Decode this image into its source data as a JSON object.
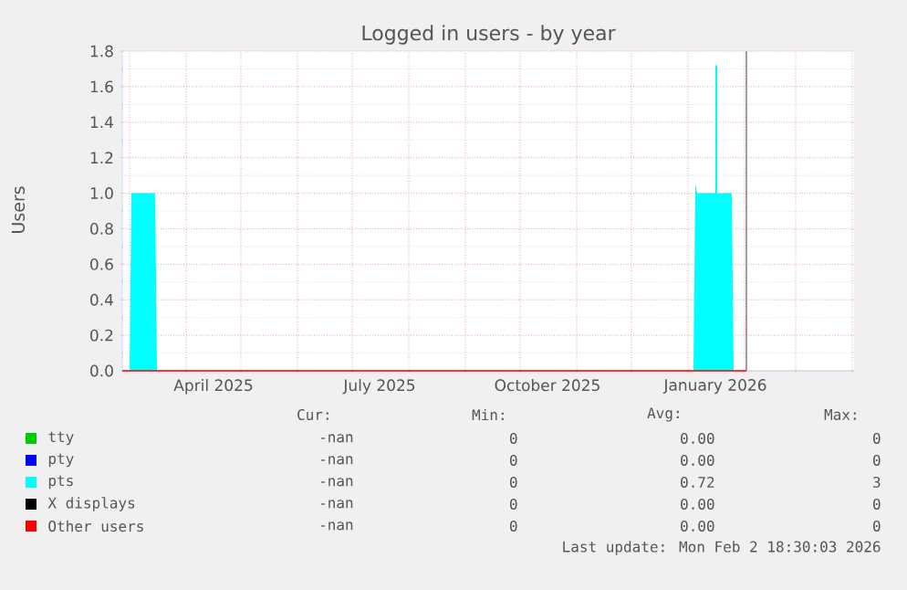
{
  "chart_data": {
    "type": "area",
    "title": "Logged in users - by year",
    "ylabel": "Users",
    "xlim": [
      "2025-02-25",
      "2026-04-02"
    ],
    "xticks": [
      {
        "value": "2025-03-01",
        "label": null
      },
      {
        "value": "2025-04-01",
        "label": null
      },
      {
        "value": "2025-05-01",
        "label": null
      },
      {
        "value": "2025-06-01",
        "label": null
      },
      {
        "value": "2025-07-01",
        "label": null
      },
      {
        "value": "2025-08-01",
        "label": null
      },
      {
        "value": "2025-09-01",
        "label": null
      },
      {
        "value": "2025-10-01",
        "label": null
      },
      {
        "value": "2025-11-01",
        "label": null
      },
      {
        "value": "2025-12-01",
        "label": null
      },
      {
        "value": "2026-01-01",
        "label": null
      },
      {
        "value": "2026-02-01",
        "label": null
      },
      {
        "value": "2026-03-01",
        "label": null
      },
      {
        "value": "2026-04-01",
        "label": null
      },
      {
        "value": "2025-04-16",
        "label": "April 2025"
      },
      {
        "value": "2025-07-16",
        "label": "July 2025"
      },
      {
        "value": "2025-10-16",
        "label": "October 2025"
      },
      {
        "value": "2026-01-16",
        "label": "January 2026"
      }
    ],
    "ylim": [
      0,
      1.8
    ],
    "yticks": [
      {
        "value": 0,
        "label": "0.0"
      },
      0.2,
      0.4,
      0.6,
      0.8,
      {
        "value": 1,
        "label": "1.0"
      },
      1.2,
      1.4,
      1.6,
      1.8
    ],
    "grid": true,
    "legend": "bottom",
    "series": [
      {
        "name": "tty",
        "color": "#00cc00",
        "type": "line",
        "values": [
          null
        ]
      },
      {
        "name": "pty",
        "color": "#0000ff",
        "type": "line",
        "values": [
          null
        ]
      },
      {
        "name": "pts",
        "color": "#00ffff",
        "x": [
          "2025-02-25",
          "2025-03-01",
          "2025-03-02",
          "2025-03-15",
          "2025-03-16",
          "2026-01-04",
          "2026-01-05",
          "2026-01-06",
          "2026-01-16",
          "2026-01-16",
          "2026-01-17",
          "2026-01-17",
          "2026-01-25",
          "2026-01-26",
          "2026-02-02"
        ],
        "values": [
          0,
          0,
          1,
          1,
          0,
          0,
          1.05,
          1,
          1,
          1.72,
          1.72,
          1,
          1,
          0,
          0
        ]
      },
      {
        "name": "X displays",
        "color": "#000000",
        "type": "line",
        "values": [
          null
        ]
      },
      {
        "name": "Other users",
        "color": "#ff0000",
        "type": "line",
        "x": [
          "2025-02-25",
          "2026-02-02"
        ],
        "values": [
          0,
          0
        ]
      }
    ],
    "ref_lines": [
      {
        "axis": "x",
        "value": "2026-02-02",
        "color": "#777777"
      }
    ],
    "annotations": [
      "Cur:",
      "Min:",
      "Avg:",
      "Max:",
      "-nan",
      "0",
      "0.00",
      "0",
      "-nan",
      "0",
      "0.00",
      "0",
      "-nan",
      "0",
      "0.72",
      "3",
      "-nan",
      "0",
      "0.00",
      "0",
      "-nan",
      "0",
      "0.00",
      "0",
      "Last update: Mon Feb  2 18:30:03 2026"
    ]
  }
}
